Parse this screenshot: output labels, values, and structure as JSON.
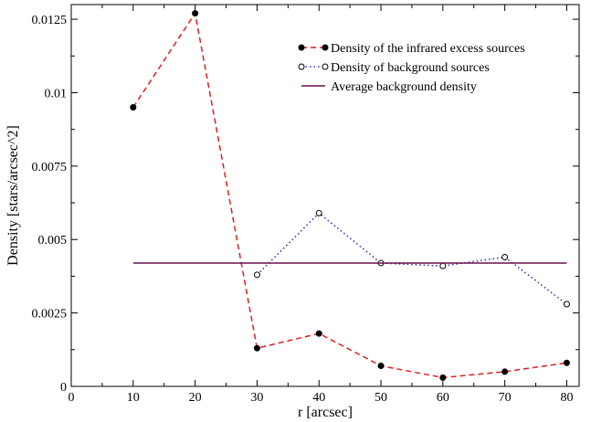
{
  "chart_data": {
    "type": "line",
    "xlabel": "r [arcsec]",
    "ylabel": "Density [stars/arcsec^2]",
    "xlim": [
      0,
      82
    ],
    "ylim": [
      0,
      0.013
    ],
    "x_ticks": [
      0,
      10,
      20,
      30,
      40,
      50,
      60,
      70,
      80
    ],
    "x_tick_labels": [
      "0",
      "10",
      "20",
      "30",
      "40",
      "50",
      "60",
      "70",
      "80"
    ],
    "y_ticks": [
      0,
      0.0025,
      0.005,
      0.0075,
      0.01,
      0.0125
    ],
    "y_tick_labels": [
      "0",
      "0.0025",
      "0.005",
      "0.0075",
      "0.01",
      "0.0125"
    ],
    "grid": false,
    "legend_position": "top-right",
    "series": [
      {
        "name": "Density of the infrared excess sources",
        "color": "#e41a1c",
        "line_style": "dashed",
        "marker": "filled-circle",
        "x": [
          10,
          20,
          30,
          40,
          50,
          60,
          70,
          80
        ],
        "y": [
          0.0095,
          0.0127,
          0.0013,
          0.0018,
          0.0007,
          0.0003,
          0.0005,
          0.0008
        ]
      },
      {
        "name": "Density of background sources",
        "color": "#2b2bb0",
        "line_style": "dotted",
        "marker": "open-circle",
        "x": [
          30,
          40,
          50,
          60,
          70,
          80
        ],
        "y": [
          0.0038,
          0.0059,
          0.0042,
          0.0041,
          0.0044,
          0.0028
        ]
      },
      {
        "name": "Average background density",
        "color": "#6b0f4f",
        "line_style": "solid",
        "marker": "none",
        "x": [
          10,
          80
        ],
        "y": [
          0.0042,
          0.0042
        ]
      }
    ]
  }
}
